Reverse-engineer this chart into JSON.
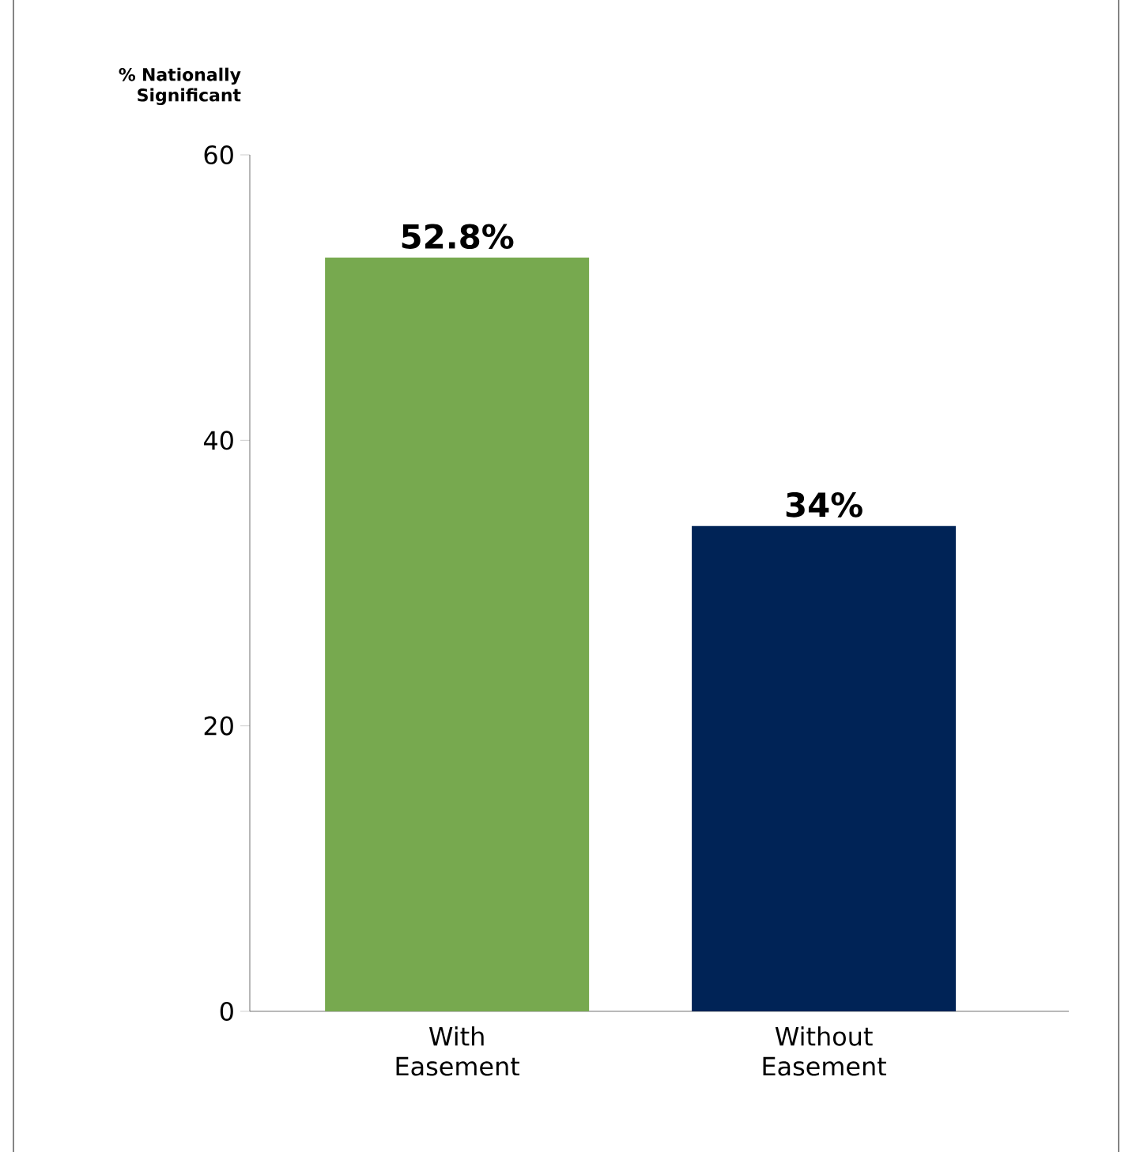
{
  "chart_data": {
    "type": "bar",
    "ylabel": "% Nationally Significant",
    "categories": [
      "With Easement",
      "Without Easement"
    ],
    "values": [
      52.8,
      34
    ],
    "colors": [
      "#77a94f",
      "#002356"
    ],
    "value_labels": [
      "52.8%",
      "34%"
    ],
    "ylim": [
      0,
      60
    ],
    "yticks": [
      0,
      20,
      40,
      60
    ],
    "grid": false
  }
}
